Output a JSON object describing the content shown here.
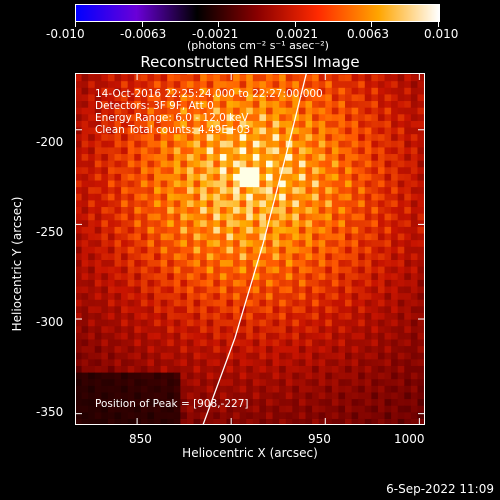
{
  "colorbar": {
    "tick_labels": [
      "-0.010",
      "-0.0063",
      "-0.0021",
      "0.0021",
      "0.0063",
      "0.010"
    ],
    "tick_values": [
      -0.01,
      -0.0063,
      -0.0021,
      0.0021,
      0.0063,
      0.01
    ],
    "range": [
      -0.01,
      0.01
    ],
    "units": "(photons cm⁻² s⁻¹ asec⁻²)",
    "colors": [
      "#0000ff",
      "#6a00d8",
      "#000000",
      "#8a0000",
      "#ff2a00",
      "#ffa500",
      "#ffffff"
    ]
  },
  "chart_data": {
    "type": "heatmap",
    "title": "Reconstructed RHESSI Image",
    "xlabel": "Heliocentric X (arcsec)",
    "ylabel": "Heliocentric Y (arcsec)",
    "xlim": [
      817,
      1003
    ],
    "ylim": [
      -356,
      -170
    ],
    "x_ticks": [
      850,
      900,
      950,
      1000
    ],
    "x_tick_labels": [
      "850",
      "900",
      "950",
      "1000"
    ],
    "y_ticks": [
      -200,
      -250,
      -300,
      -350
    ],
    "y_tick_labels": [
      "-200",
      "-250",
      "-300",
      "-350"
    ],
    "peak_position": [
      908,
      -227
    ],
    "limb_curve": [
      [
        940,
        -170
      ],
      [
        930,
        -210
      ],
      [
        917,
        -260
      ],
      [
        902,
        -310
      ],
      [
        885,
        -356
      ]
    ]
  },
  "annotations": {
    "time_range": "14-Oct-2016 22:25:24.000 to 22:27:00.000",
    "detectors": "Detectors: 3F 9F, Att 0",
    "energy_range": "Energy Range: 6.0 - 12.0 keV",
    "algorithm": "Clean     Total counts: 4.49E+03",
    "peak": "Position of Peak = [908,-227]"
  },
  "footer": {
    "date": "6-Sep-2022 11:09"
  }
}
